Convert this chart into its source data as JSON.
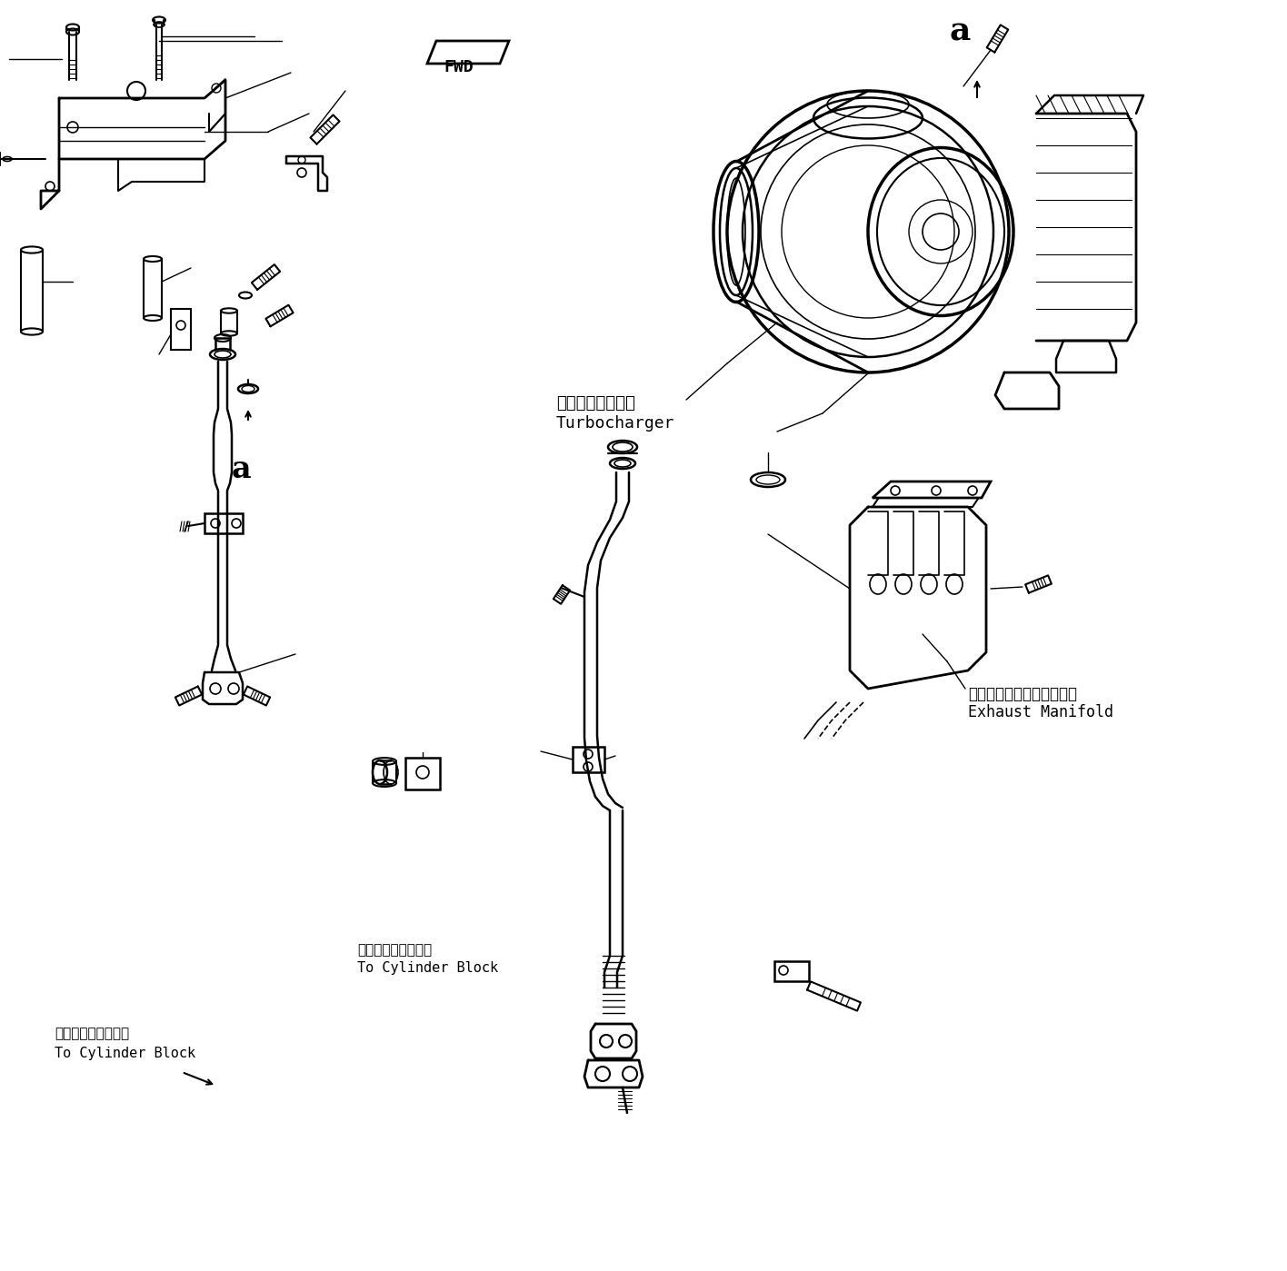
{
  "bg_color": "#ffffff",
  "line_color": "#000000",
  "labels": {
    "turbocharger_jp": "ターボチャージャ",
    "turbocharger_en": "Turbocharger",
    "exhaust_jp": "エキゾーストマニホールド",
    "exhaust_en": "Exhaust Manifold",
    "cylinder_jp1": "シリンダブロックへ",
    "cylinder_en1": "To Cylinder Block",
    "cylinder_jp2": "シリンダブロックへ",
    "cylinder_en2": "To Cylinder Block",
    "fwd": "FWD",
    "label_a1": "a",
    "label_a2": "a"
  },
  "figsize": [
    14.16,
    13.99
  ],
  "dpi": 100
}
